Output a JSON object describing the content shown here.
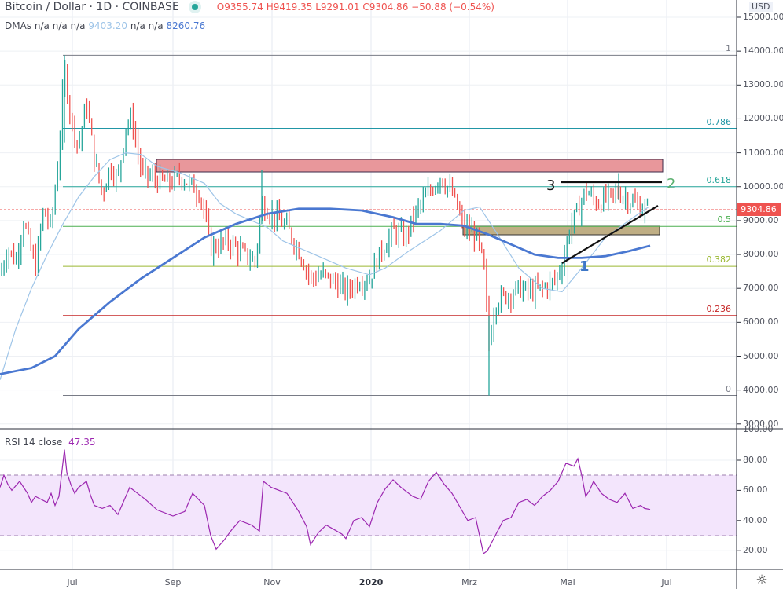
{
  "header": {
    "symbol": "Bitcoin / Dollar · 1D · COINBASE",
    "open": "O9355.74",
    "high": "H9419.35",
    "low": "L9291.01",
    "close": "C9304.86",
    "change": "−50.88 (−0.54%)",
    "status_color": "#26a69a"
  },
  "dmas": {
    "label": "DMAs",
    "values_prefix": "n/a n/a n/a",
    "v1": "9403.20",
    "values_mid": "n/a n/a",
    "v2": "8260.76"
  },
  "rsi": {
    "label": "RSI 14 close",
    "value": "47.35"
  },
  "price_axis": {
    "currency": "USD",
    "ticks": [
      "15000.00",
      "14000.00",
      "13000.00",
      "12000.00",
      "11000.00",
      "10000.00",
      "9000.00",
      "8000.00",
      "7000.00",
      "6000.00",
      "5000.00",
      "4000.00",
      "3000.00"
    ],
    "last_price": "9304.86"
  },
  "rsi_axis": {
    "ticks": [
      "100.00",
      "80.00",
      "60.00",
      "40.00",
      "20.00"
    ]
  },
  "time_axis": {
    "ticks": [
      {
        "label": "Jul",
        "bold": false
      },
      {
        "label": "Sep",
        "bold": false
      },
      {
        "label": "Nov",
        "bold": false
      },
      {
        "label": "2020",
        "bold": true
      },
      {
        "label": "Mrz",
        "bold": false
      },
      {
        "label": "Mai",
        "bold": false
      },
      {
        "label": "Jul",
        "bold": false
      }
    ]
  },
  "fib_levels": [
    {
      "level": "1",
      "price": 13880,
      "color": "#787b86"
    },
    {
      "level": "0.786",
      "price": 11720,
      "color": "#2196a6"
    },
    {
      "level": "0.618",
      "price": 10000,
      "color": "#26a69a"
    },
    {
      "level": "0.5",
      "price": 8830,
      "color": "#4caf50"
    },
    {
      "level": "0.382",
      "price": 7650,
      "color": "#9ab832"
    },
    {
      "level": "0.236",
      "price": 6200,
      "color": "#c62828"
    },
    {
      "level": "0",
      "price": 3840,
      "color": "#787b86"
    }
  ],
  "annotations": {
    "label_1": "1",
    "label_2": "2",
    "label_3": "3"
  },
  "colors": {
    "up": "#26a69a",
    "down": "#ef5350",
    "ma_fast": "#9fc5e8",
    "ma_slow": "#4a78d1",
    "rsi_line": "#9c27b0",
    "rsi_band": "#f3e5fc",
    "resistance_zone": "#e8979b",
    "support_zone": "#bfae84"
  },
  "chart_data": [
    {
      "type": "candlestick",
      "title": "Bitcoin / Dollar · 1D · COINBASE",
      "ylabel": "USD",
      "ylim": [
        3000,
        15000
      ],
      "x_ticks": [
        "Jul",
        "Sep",
        "Nov",
        "2020",
        "Mrz",
        "Mai",
        "Jul"
      ],
      "last": {
        "open": 9355.74,
        "high": 9419.35,
        "low": 9291.01,
        "close": 9304.86,
        "change": -50.88,
        "change_pct": -0.54
      },
      "key_points": [
        {
          "date": "Jun 2019 start",
          "price": 7500
        },
        {
          "date": "late Jun 2019 high",
          "price": 13880
        },
        {
          "date": "Aug 2019 high",
          "price": 12300
        },
        {
          "date": "Sep 2019",
          "price": 10200
        },
        {
          "date": "late Sep 2019",
          "price": 8000
        },
        {
          "date": "late Oct 2019 spike",
          "price": 10500
        },
        {
          "date": "Nov/Dec 2019 low",
          "price": 6500
        },
        {
          "date": "Feb 2020 high",
          "price": 10500
        },
        {
          "date": "Mar 2020 low",
          "price": 3840
        },
        {
          "date": "Apr 2020",
          "price": 7700
        },
        {
          "date": "May 2020",
          "price": 10000
        },
        {
          "date": "Jun 2020 last",
          "price": 9304.86
        }
      ],
      "moving_averages": [
        {
          "name": "DMA 50",
          "last": 9403.2
        },
        {
          "name": "DMA 200",
          "last": 8260.76
        }
      ],
      "fibonacci": {
        "0": 3840,
        "0.236": 6200,
        "0.382": 7650,
        "0.5": 8830,
        "0.618": 10000,
        "0.786": 11720,
        "1": 13880
      },
      "zones": [
        {
          "name": "resistance",
          "from": 10400,
          "to": 10800
        },
        {
          "name": "support",
          "from": 8650,
          "to": 8900
        }
      ],
      "annotations": [
        "1",
        "2",
        "3"
      ]
    },
    {
      "type": "line",
      "title": "RSI 14 close",
      "value": 47.35,
      "ylim": [
        0,
        100
      ],
      "bands": [
        30,
        70
      ],
      "y_ticks": [
        20,
        40,
        60,
        80,
        100
      ],
      "key_points": [
        {
          "date": "late Jun 2019",
          "value": 87
        },
        {
          "date": "Sep 2019",
          "value": 20
        },
        {
          "date": "Oct 2019",
          "value": 67
        },
        {
          "date": "Mar 2020",
          "value": 16
        },
        {
          "date": "May 2020",
          "value": 81
        },
        {
          "date": "Jun 2020",
          "value": 47.35
        }
      ]
    }
  ]
}
